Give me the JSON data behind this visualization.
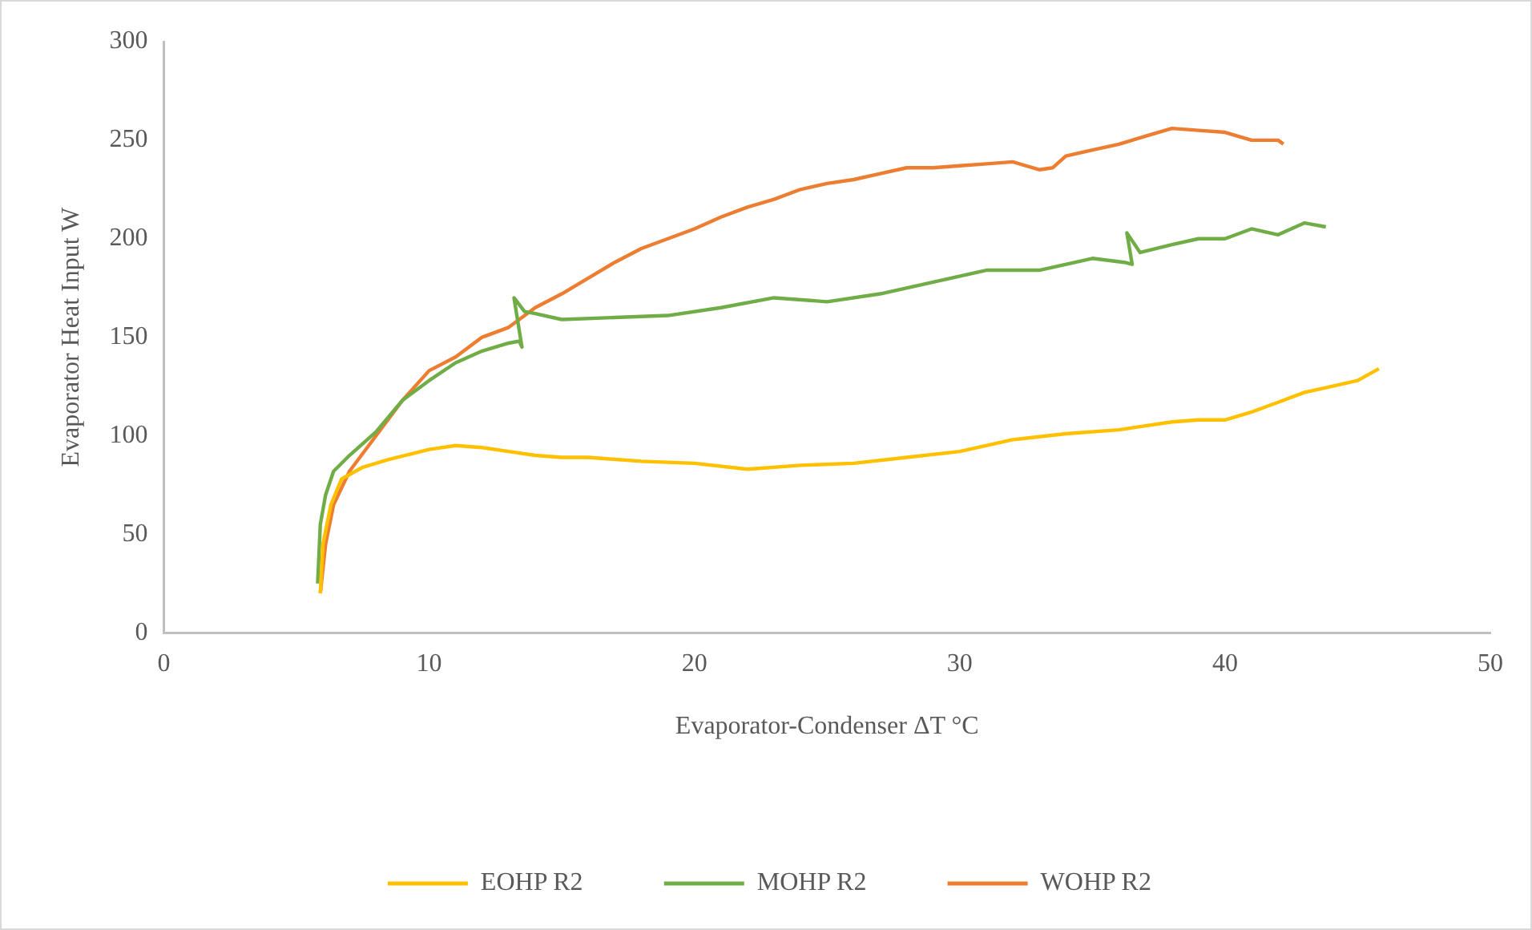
{
  "chart_data": {
    "type": "line",
    "xlabel": "Evaporator-Condenser ΔT °C",
    "ylabel": "Evaporator Heat Input W",
    "xlim": [
      0,
      50
    ],
    "xticks": [
      0,
      10,
      20,
      30,
      40,
      50
    ],
    "ylim": [
      0,
      300
    ],
    "yticks": [
      0,
      50,
      100,
      150,
      200,
      250,
      300
    ],
    "grid": false,
    "legend": "bottom",
    "marker": "none",
    "line_style": "solid",
    "series": [
      {
        "name": "EOHP R2",
        "color": "#ffc000",
        "x": [
          5.9,
          6.0,
          6.3,
          6.7,
          7.5,
          8.5,
          10,
          11,
          12,
          13,
          14,
          15,
          16,
          18,
          20,
          22,
          24,
          26,
          28,
          30,
          32,
          34,
          36,
          37,
          38,
          39,
          40,
          41,
          42,
          43,
          44,
          45,
          45.8
        ],
        "values": [
          20,
          45,
          65,
          78,
          84,
          88,
          93,
          95,
          94,
          92,
          90,
          89,
          89,
          87,
          86,
          83,
          85,
          86,
          89,
          92,
          98,
          101,
          103,
          105,
          107,
          108,
          108,
          112,
          117,
          122,
          125,
          128,
          134
        ]
      },
      {
        "name": "MOHP R2",
        "color": "#70ad47",
        "x": [
          5.8,
          5.9,
          6.1,
          6.4,
          7,
          8,
          9,
          10,
          11,
          12,
          13,
          13.4,
          13.5,
          13.2,
          13.6,
          14,
          15,
          17,
          19,
          21,
          23,
          25,
          27,
          29,
          31,
          33,
          35,
          36.2,
          36.5,
          36.3,
          36.8,
          38,
          39,
          40,
          41,
          42,
          43,
          43.8
        ],
        "values": [
          25,
          55,
          70,
          82,
          90,
          102,
          118,
          128,
          137,
          143,
          147,
          148,
          145,
          170,
          163,
          162,
          159,
          160,
          161,
          165,
          170,
          168,
          172,
          178,
          184,
          184,
          190,
          188,
          187,
          203,
          193,
          197,
          200,
          200,
          205,
          202,
          208,
          206
        ]
      },
      {
        "name": "WOHP R2",
        "color": "#ed7d31",
        "x": [
          5.9,
          6.1,
          6.4,
          7,
          8,
          9,
          10,
          11,
          12,
          13,
          14,
          15,
          16,
          17,
          18,
          19,
          20,
          21,
          22,
          23,
          24,
          25,
          26,
          27,
          28,
          29,
          30,
          31,
          32,
          33,
          33.5,
          34,
          35,
          36,
          37,
          38,
          39,
          40,
          41,
          42,
          42.2
        ],
        "values": [
          20,
          45,
          65,
          82,
          100,
          118,
          133,
          140,
          150,
          155,
          165,
          172,
          180,
          188,
          195,
          200,
          205,
          211,
          216,
          220,
          225,
          228,
          230,
          233,
          236,
          236,
          237,
          238,
          239,
          235,
          236,
          242,
          245,
          248,
          252,
          256,
          255,
          254,
          250,
          250,
          248
        ]
      }
    ]
  }
}
